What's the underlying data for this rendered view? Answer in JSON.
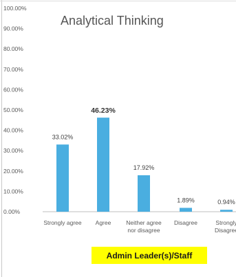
{
  "chart_data": {
    "type": "bar",
    "title": "Analytical Thinking",
    "categories": [
      [
        "Strongly agree"
      ],
      [
        "Agree"
      ],
      [
        "Neither agree",
        "nor disagree"
      ],
      [
        "Disagree"
      ],
      [
        "Strongly",
        "Disagree"
      ]
    ],
    "values": [
      33.02,
      46.23,
      17.92,
      1.89,
      0.94
    ],
    "data_labels": [
      "33.02%",
      "46.23%",
      "17.92%",
      "1.89%",
      "0.94%"
    ],
    "highlighted_label_index": 1,
    "ylim": [
      0,
      100
    ],
    "yticks": [
      "0.00%",
      "10.00%",
      "20.00%",
      "30.00%",
      "40.00%",
      "50.00%",
      "60.00%",
      "70.00%",
      "80.00%",
      "90.00%",
      "100.00%"
    ],
    "bar_color": "#4aaee0",
    "grid": false,
    "legend_label": "Admin Leader(s)/Staff",
    "legend_color": "#ffff00"
  }
}
